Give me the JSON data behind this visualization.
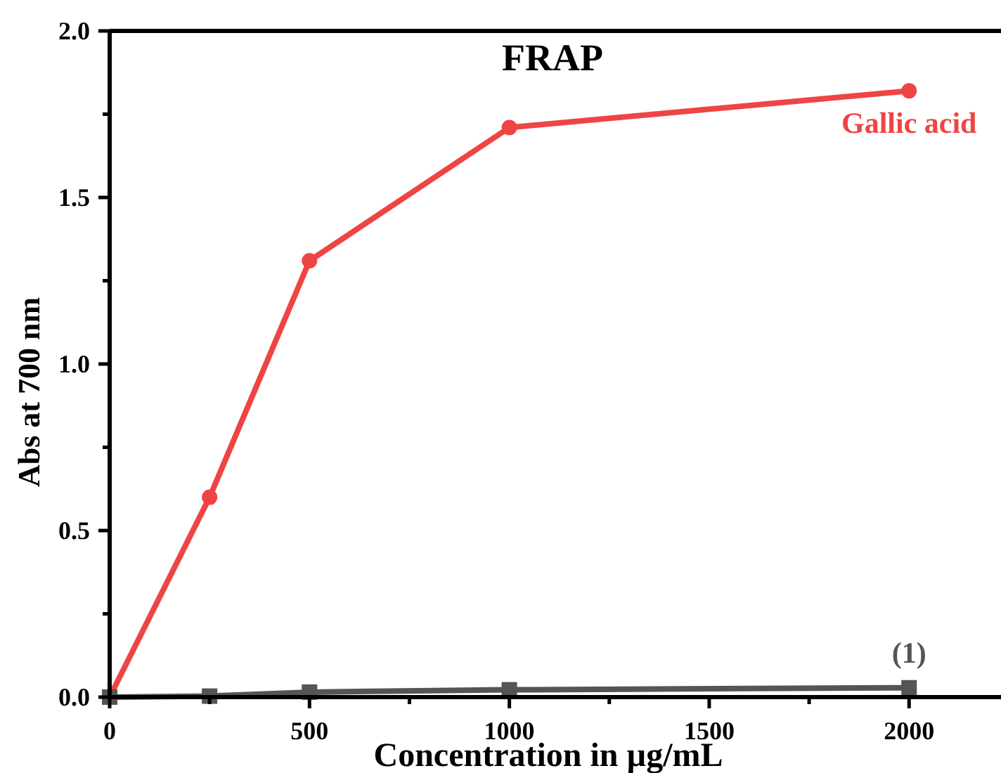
{
  "chart_data": {
    "type": "line",
    "title": "FRAP",
    "xlabel": "Concentration in µg/mL",
    "ylabel": "Abs at 700 nm",
    "x": [
      0,
      250,
      500,
      1000,
      2000
    ],
    "series": [
      {
        "name": "Gallic acid",
        "color": "#ef4444",
        "marker": "circle",
        "values": [
          0,
          0.6,
          1.31,
          1.71,
          1.82
        ]
      },
      {
        "name": "(1)",
        "color": "#555555",
        "marker": "square",
        "values": [
          0,
          0.003,
          0.015,
          0.022,
          0.028
        ]
      }
    ],
    "xlim": [
      0,
      2230
    ],
    "ylim": [
      0,
      2
    ],
    "xticks": [
      0,
      {
        "value": 250,
        "label": null
      },
      500,
      {
        "value": 750,
        "label": null
      },
      1000,
      {
        "value": 1250,
        "label": null
      },
      1500,
      {
        "value": 1750,
        "label": null
      },
      2000
    ],
    "yticks": [
      {
        "value": 0,
        "label": "0.0"
      },
      {
        "value": 0.25,
        "label": null
      },
      {
        "value": 0.5,
        "label": "0.5"
      },
      {
        "value": 0.75,
        "label": null
      },
      {
        "value": 1,
        "label": "1.0"
      },
      {
        "value": 1.25,
        "label": null
      },
      {
        "value": 1.5,
        "label": "1.5"
      },
      {
        "value": 1.75,
        "label": null
      },
      {
        "value": 2,
        "label": "2.0"
      }
    ],
    "grid": false,
    "line_style": "solid"
  }
}
